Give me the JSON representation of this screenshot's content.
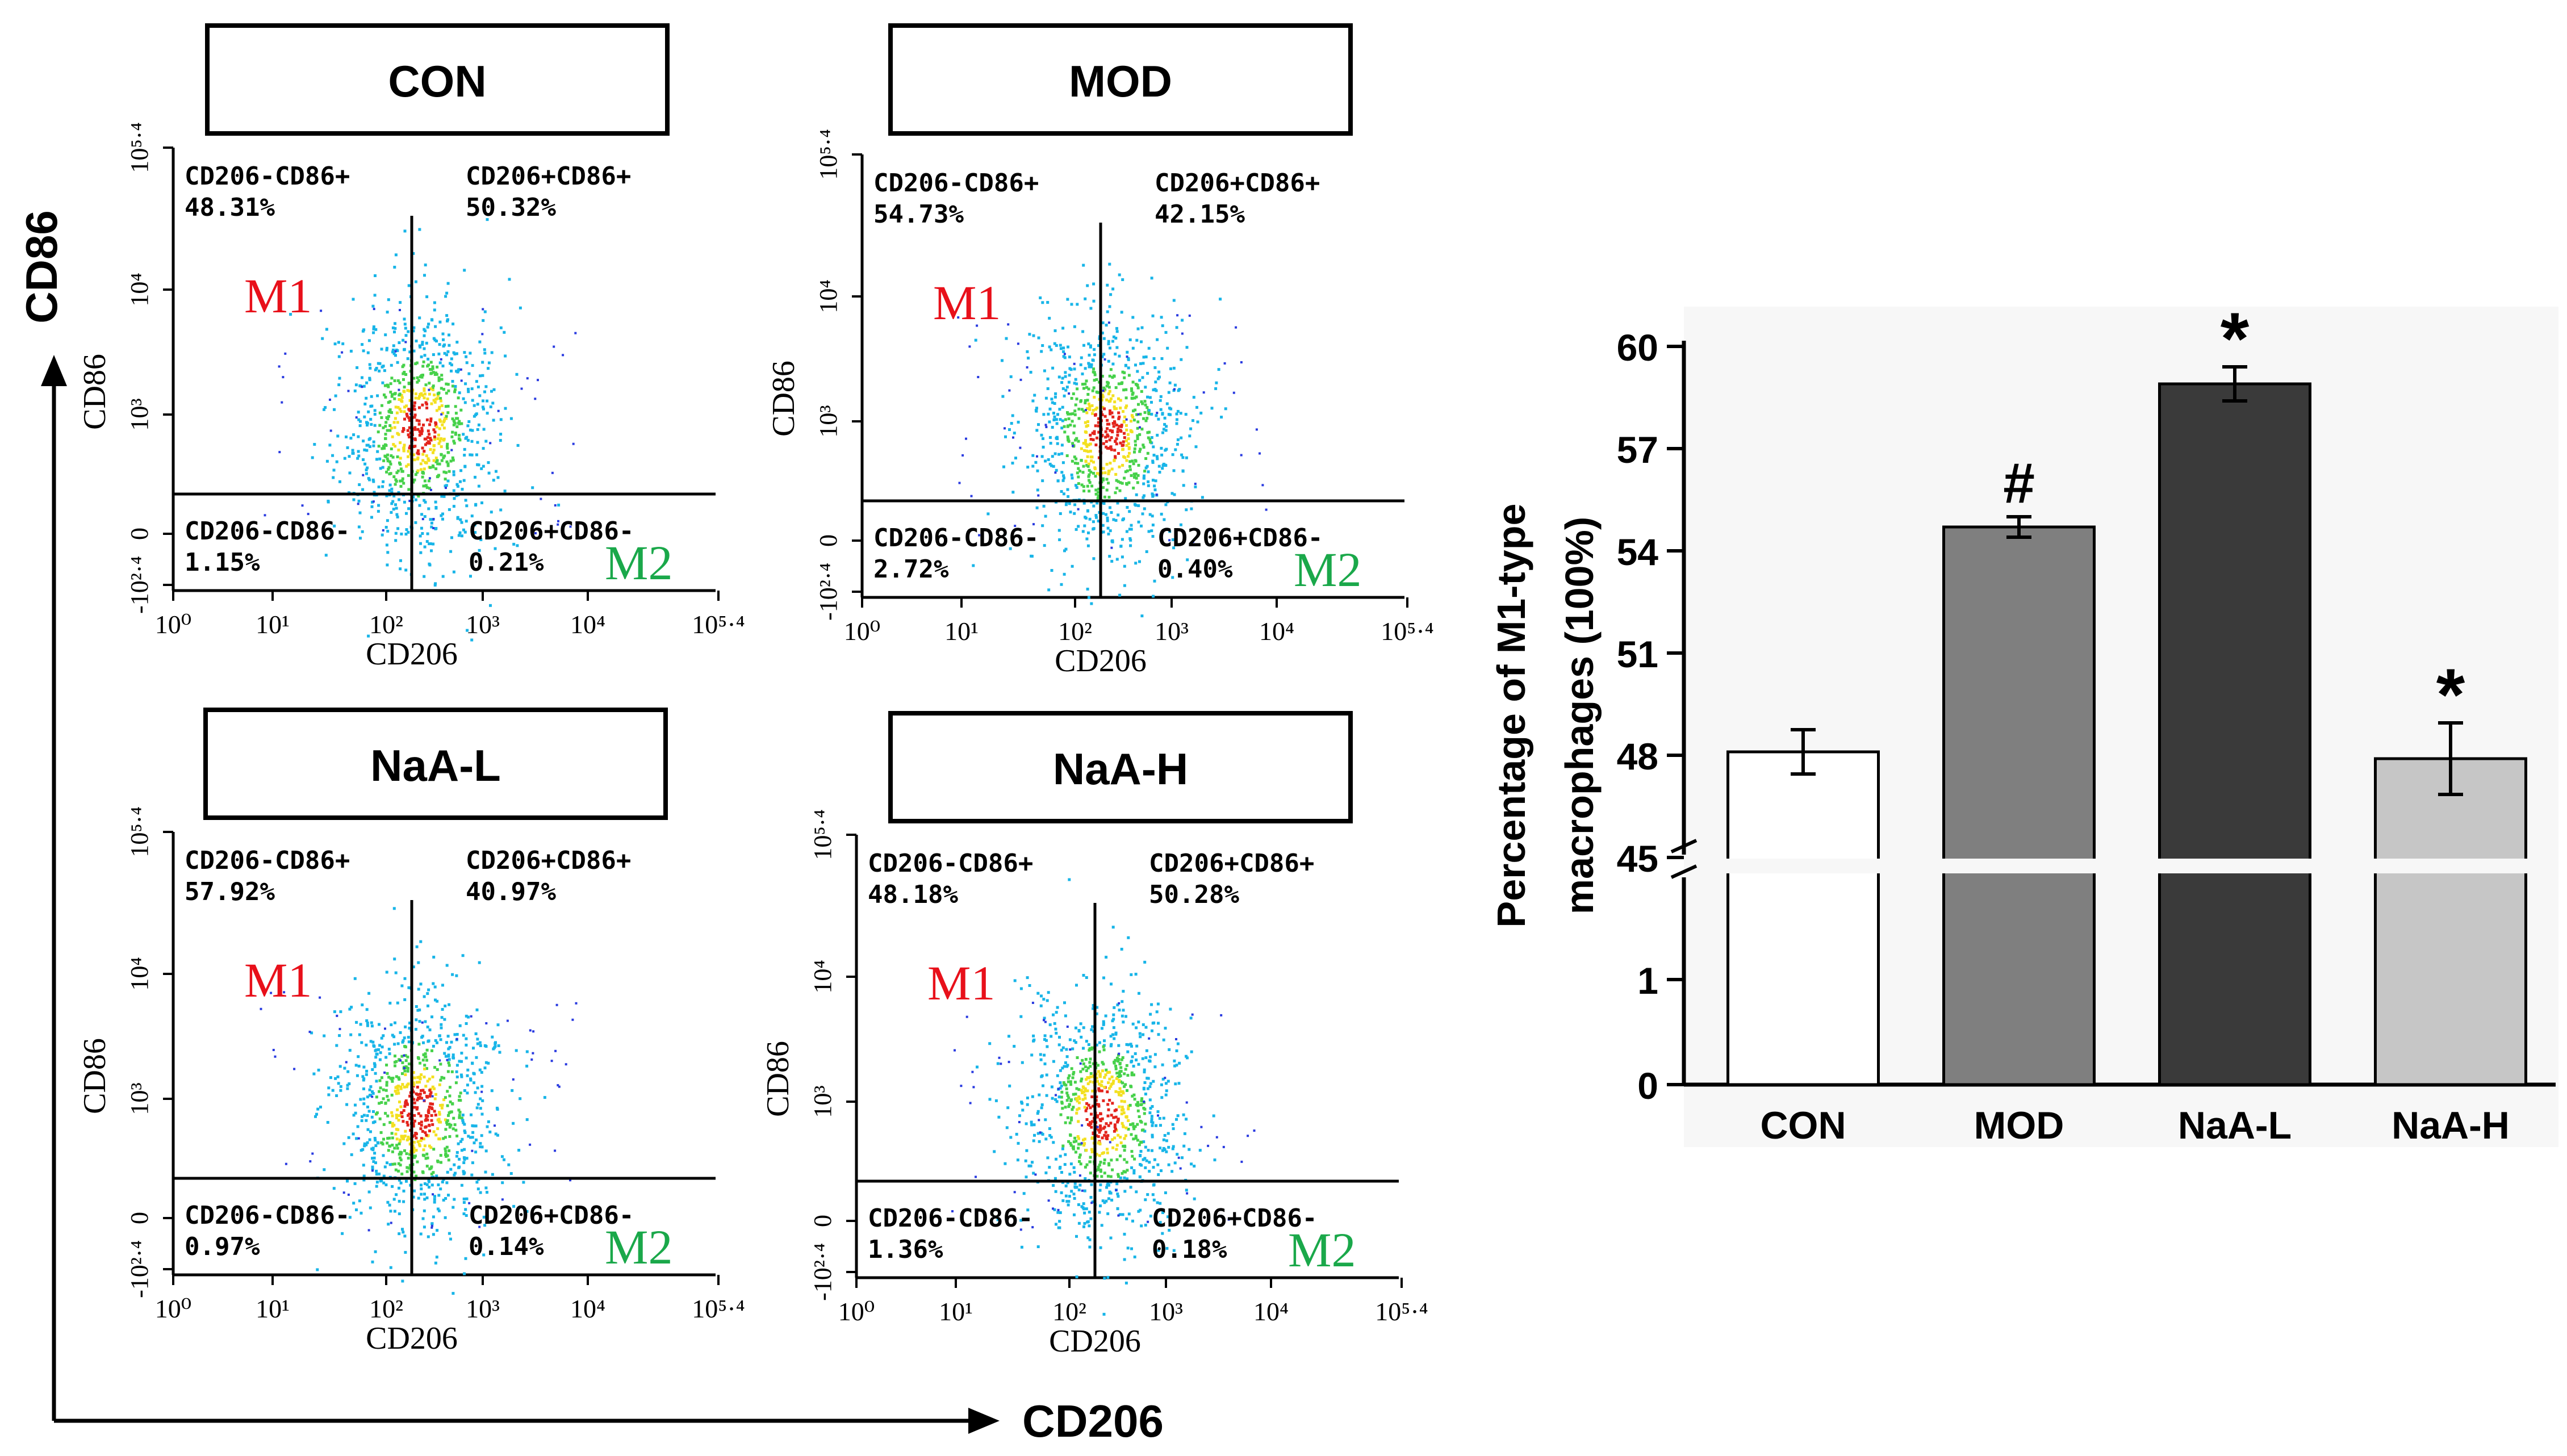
{
  "figure": {
    "left_axis": {
      "y_label": "CD86",
      "x_label": "CD206"
    },
    "panels": [
      {
        "title": "CON",
        "x_axis_label": "CD206",
        "y_axis_label": "CD86",
        "x_ticks": [
          "10⁰",
          "10¹",
          "10²",
          "10³",
          "10⁴",
          "10⁵·⁴"
        ],
        "y_ticks": [
          "10⁵·⁴",
          "10⁴",
          "10³",
          "0",
          "-10²·⁴"
        ],
        "quadrants": [
          {
            "name": "CD206-CD86+",
            "value": "48.31%"
          },
          {
            "name": "CD206+CD86+",
            "value": "50.32%"
          },
          {
            "name": "CD206-CD86-",
            "value": "1.15%"
          },
          {
            "name": "CD206+CD86-",
            "value": "0.21%"
          }
        ],
        "tags": {
          "m1": "M1",
          "m2": "M2"
        }
      },
      {
        "title": "MOD",
        "x_axis_label": "CD206",
        "y_axis_label": "CD86",
        "x_ticks": [
          "10⁰",
          "10¹",
          "10²",
          "10³",
          "10⁴",
          "10⁵·⁴"
        ],
        "y_ticks": [
          "10⁵·⁴",
          "10⁴",
          "10³",
          "0",
          "-10²·⁴"
        ],
        "quadrants": [
          {
            "name": "CD206-CD86+",
            "value": "54.73%"
          },
          {
            "name": "CD206+CD86+",
            "value": "42.15%"
          },
          {
            "name": "CD206-CD86-",
            "value": "2.72%"
          },
          {
            "name": "CD206+CD86-",
            "value": "0.40%"
          }
        ],
        "tags": {
          "m1": "M1",
          "m2": "M2"
        }
      },
      {
        "title": "NaA-L",
        "x_axis_label": "CD206",
        "y_axis_label": "CD86",
        "x_ticks": [
          "10⁰",
          "10¹",
          "10²",
          "10³",
          "10⁴",
          "10⁵·⁴"
        ],
        "y_ticks": [
          "10⁵·⁴",
          "10⁴",
          "10³",
          "0",
          "-10²·⁴"
        ],
        "quadrants": [
          {
            "name": "CD206-CD86+",
            "value": "57.92%"
          },
          {
            "name": "CD206+CD86+",
            "value": "40.97%"
          },
          {
            "name": "CD206-CD86-",
            "value": "0.97%"
          },
          {
            "name": "CD206+CD86-",
            "value": "0.14%"
          }
        ],
        "tags": {
          "m1": "M1",
          "m2": "M2"
        }
      },
      {
        "title": "NaA-H",
        "x_axis_label": "CD206",
        "y_axis_label": "CD86",
        "x_ticks": [
          "10⁰",
          "10¹",
          "10²",
          "10³",
          "10⁴",
          "10⁵·⁴"
        ],
        "y_ticks": [
          "10⁵·⁴",
          "10⁴",
          "10³",
          "0",
          "-10²·⁴"
        ],
        "quadrants": [
          {
            "name": "CD206-CD86+",
            "value": "48.18%"
          },
          {
            "name": "CD206+CD86+",
            "value": "50.28%"
          },
          {
            "name": "CD206-CD86-",
            "value": "1.36%"
          },
          {
            "name": "CD206+CD86-",
            "value": "0.18%"
          }
        ],
        "tags": {
          "m1": "M1",
          "m2": "M2"
        }
      }
    ]
  },
  "chart_data": {
    "type": "bar",
    "categories": [
      "CON",
      "MOD",
      "NaA-L",
      "NaA-H"
    ],
    "values": [
      48.1,
      54.7,
      58.9,
      47.9
    ],
    "errors": [
      0.65,
      0.3,
      0.5,
      1.05
    ],
    "colors": [
      "#ffffff",
      "#7f7f7f",
      "#3a3a3a",
      "#c6c6c6"
    ],
    "significance": [
      "",
      "#",
      "*",
      "*"
    ],
    "title": "",
    "xlabel": "",
    "ylabel": "Percentage of M1-type macrophages (100%)",
    "ylabel_lines": [
      "Percentage of M1-type",
      "macrophages (100%)"
    ],
    "axis_break": true,
    "upper_range": [
      45,
      60
    ],
    "upper_ticks": [
      "60",
      "57",
      "54",
      "51",
      "48",
      "45"
    ],
    "lower_range": [
      0,
      2
    ],
    "lower_ticks": [
      "1",
      "0"
    ]
  },
  "colors": {
    "m1_tag": "#e8101a",
    "m2_tag": "#1aa84a",
    "axis": "#000000",
    "chart_background": "#f7f7f7"
  }
}
